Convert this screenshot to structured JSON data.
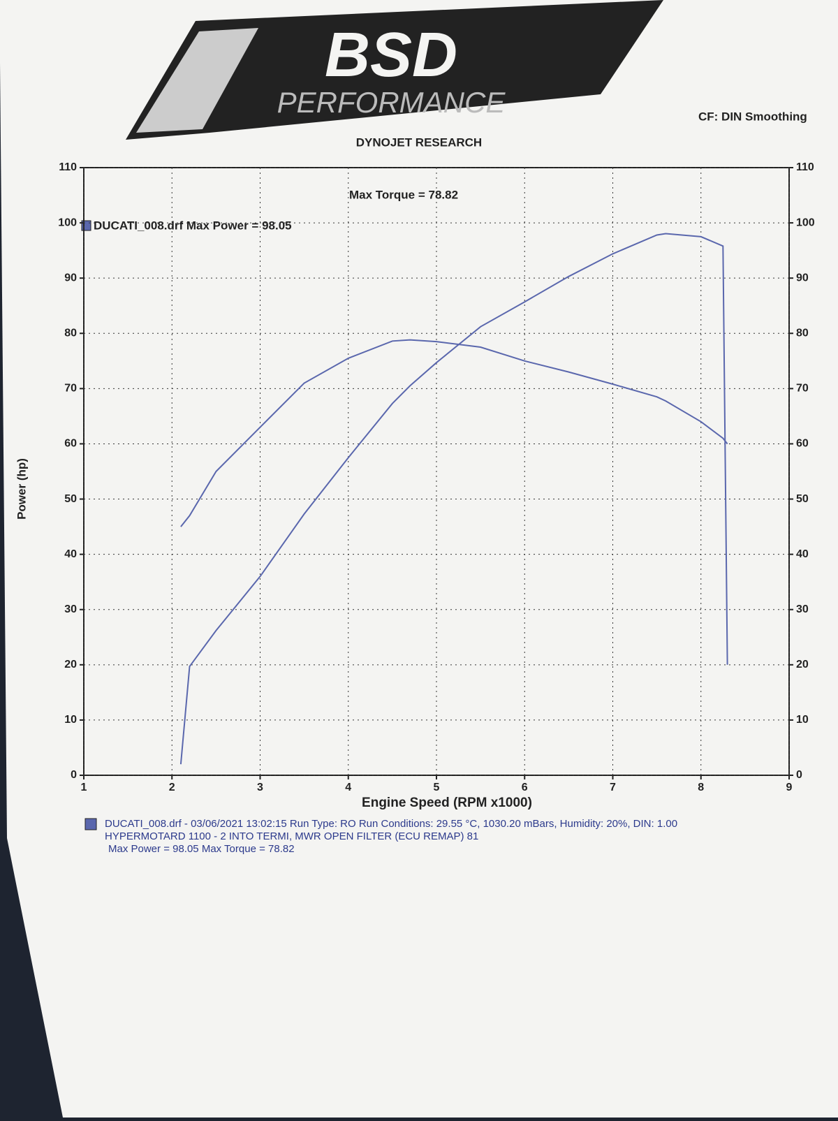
{
  "logo": {
    "brand": "BSD",
    "tagline": "PERFORMANCE"
  },
  "chart_data": {
    "type": "line",
    "title": "DYNOJET RESEARCH",
    "header": "CF: DIN  Smoothing",
    "x_label": "Engine Speed (RPM x1000)",
    "y_label": "Power (hp)",
    "legend_text": "DUCATI_008.drf Max Power = 98.05",
    "legend_extra": "Max Torque = 78.82",
    "footer": [
      "DUCATI_008.drf - 03/06/2021 13:02:15  Run Type: RO  Run Conditions: 29.55 °C, 1030.20 mBars,  Humidity:  20%, DIN: 1.00",
      "HYPERMOTARD 1100 - 2 INTO TERMI, MWR OPEN FILTER (ECU REMAP) 81",
      "Max Power = 98.05  Max Torque = 78.82"
    ],
    "xlim": [
      1,
      9
    ],
    "xticks": [
      1,
      2,
      3,
      4,
      5,
      6,
      7,
      8,
      9
    ],
    "ylim": [
      0,
      110
    ],
    "yticks": [
      0,
      10,
      20,
      30,
      40,
      50,
      60,
      70,
      80,
      90,
      100,
      110
    ],
    "y2lim": [
      0,
      110
    ],
    "y2ticks": [
      0,
      10,
      20,
      30,
      40,
      50,
      60,
      70,
      80,
      90,
      100,
      110
    ],
    "grid": true,
    "x": [
      2.1,
      2.2,
      2.5,
      3,
      3.5,
      4,
      4.5,
      4.7,
      5,
      5.5,
      6,
      6.5,
      7,
      7.5,
      7.6,
      8,
      8.25,
      8.3
    ],
    "series": [
      {
        "color": "#5a67ad",
        "values": [
          2,
          19.7,
          26.2,
          36,
          47.3,
          57.5,
          67.3,
          70.5,
          74.7,
          81.2,
          85.7,
          90.3,
          94.4,
          97.8,
          98.05,
          97.5,
          95.8,
          20
        ]
      },
      {
        "color": "#5a67ad",
        "axis": "y2",
        "values": [
          45,
          47,
          55,
          63,
          71,
          75.5,
          78.6,
          78.82,
          78.5,
          77.5,
          75,
          73,
          70.8,
          68.5,
          67.76,
          64,
          61,
          60
        ]
      }
    ]
  }
}
